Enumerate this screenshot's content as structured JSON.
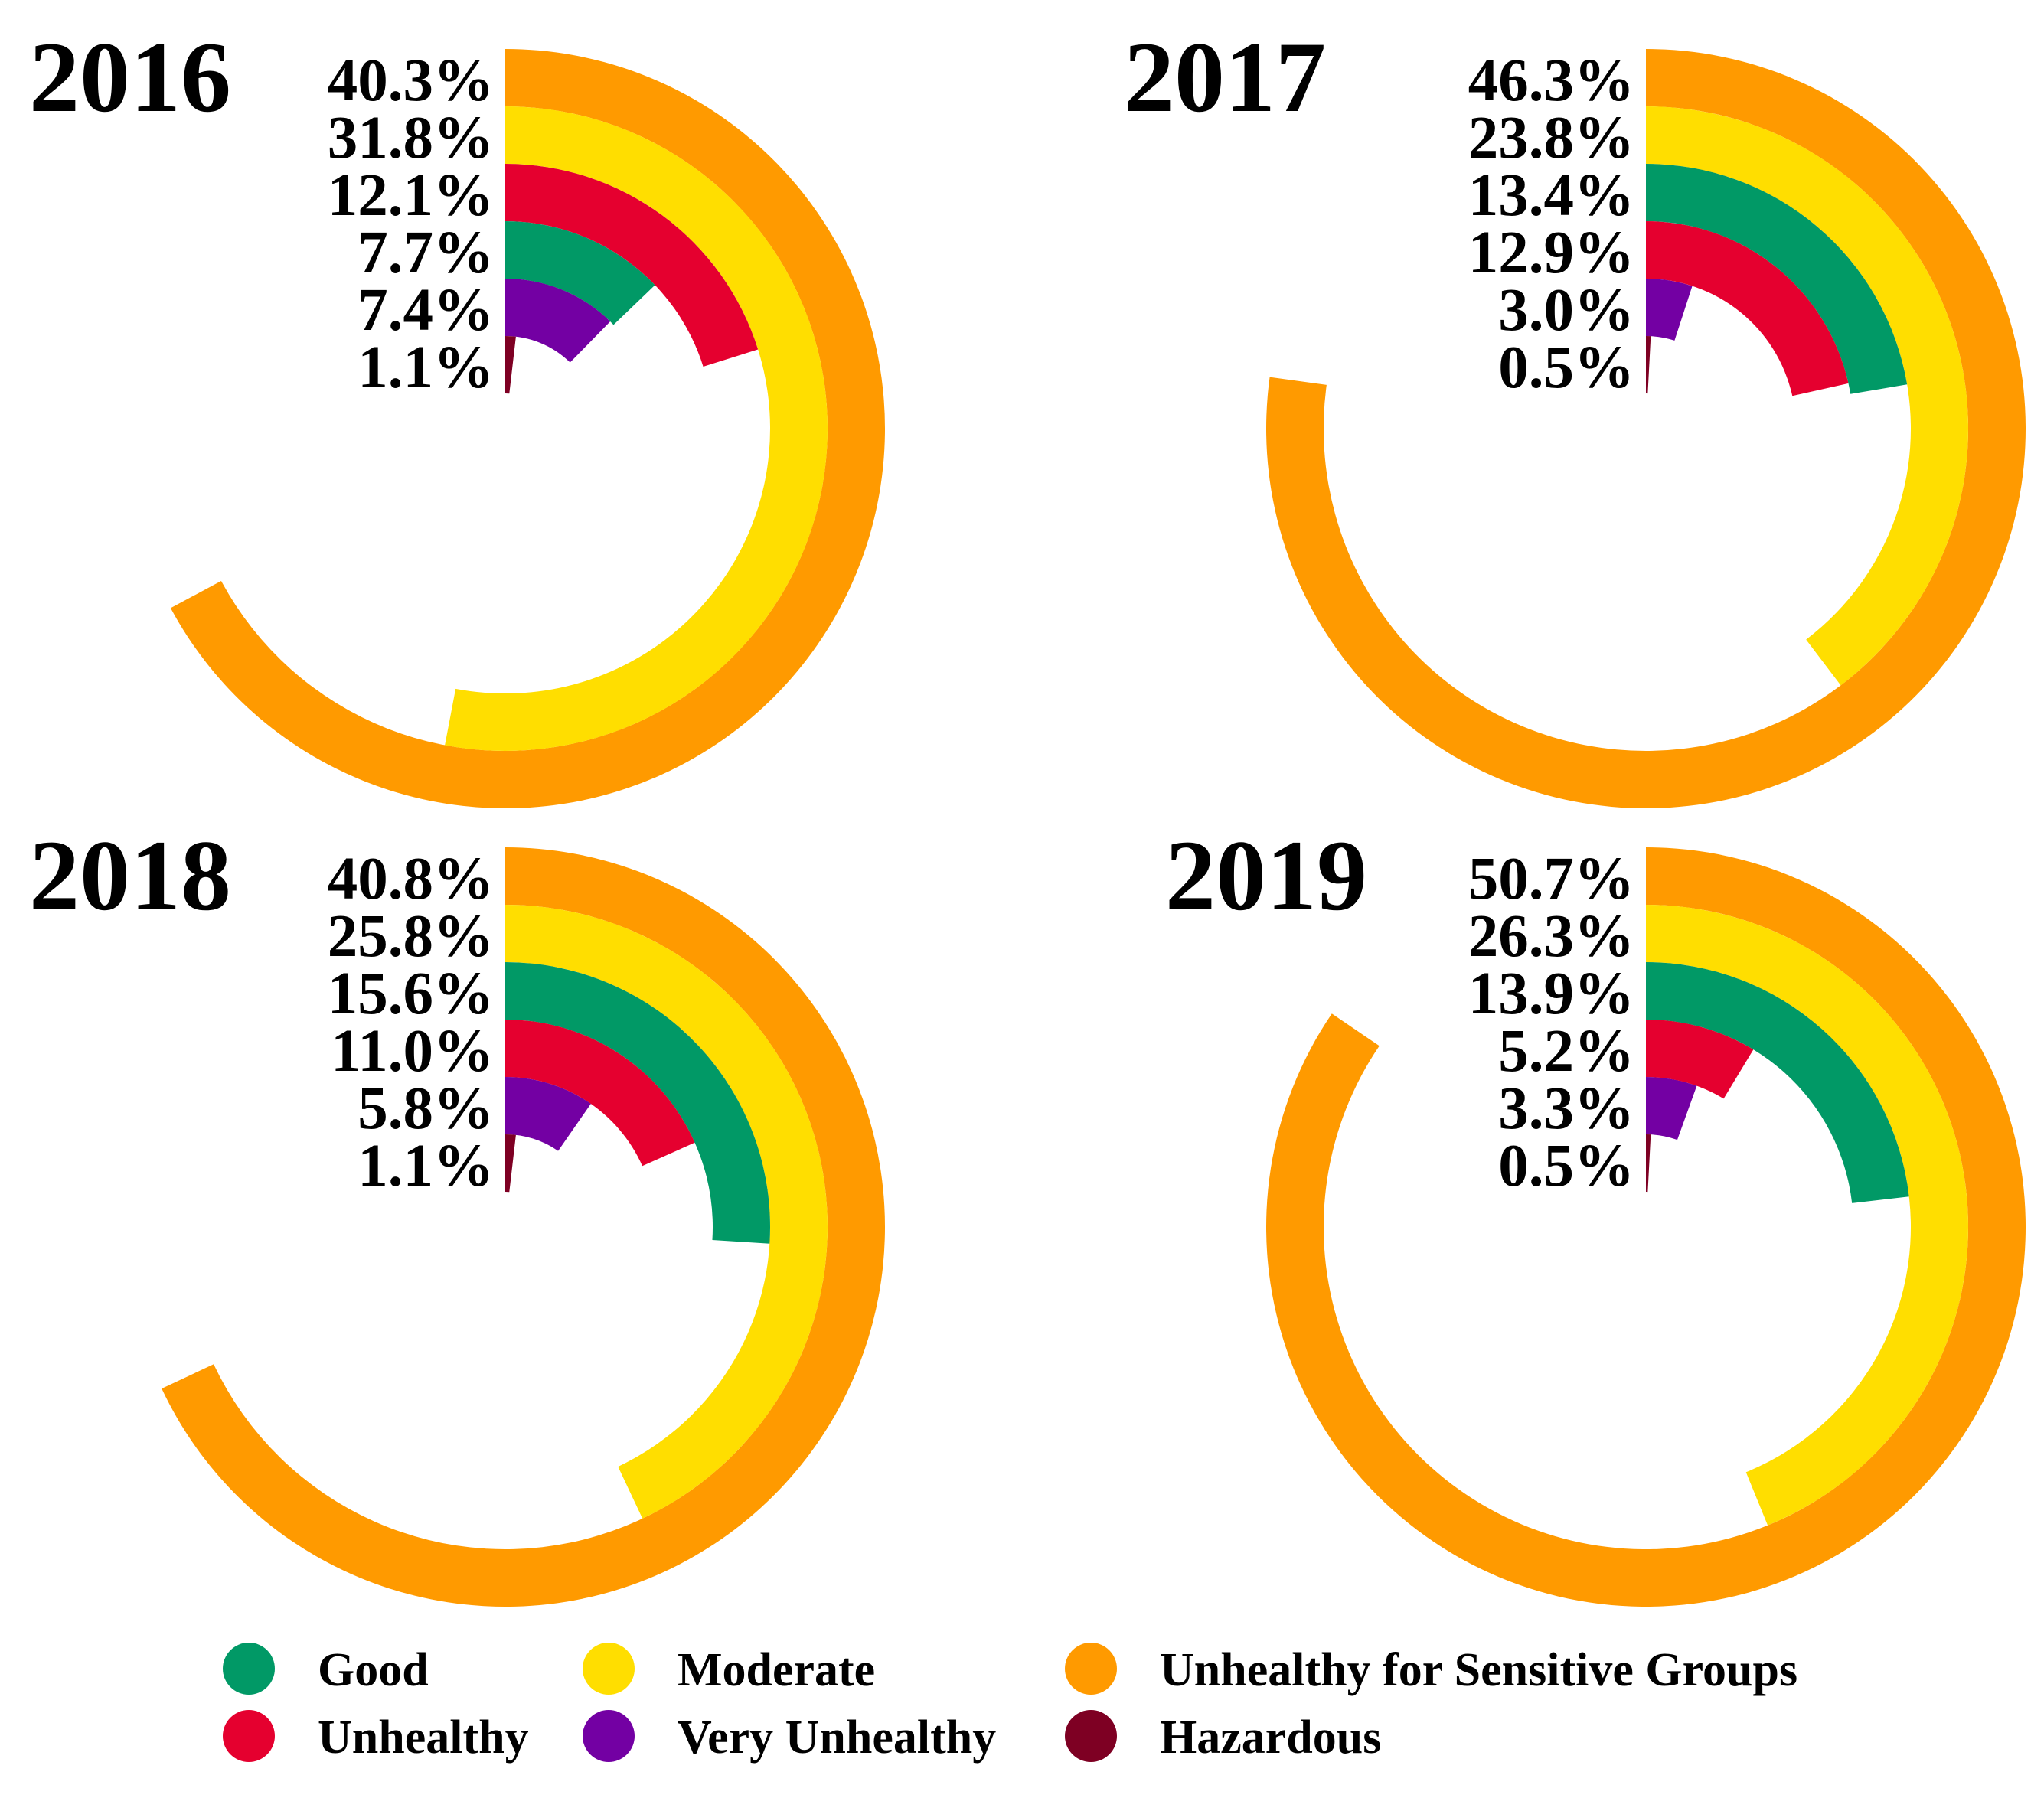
{
  "chart_data": {
    "type": "radial-bar",
    "categories": [
      "Good",
      "Moderate",
      "Unhealthy for Sensitive Groups",
      "Unhealthy",
      "Very Unhealthy",
      "Hazardous"
    ],
    "colors": {
      "Good": "#019966",
      "Moderate": "#FFDE00",
      "Unhealthy for Sensitive Groups": "#FF9A00",
      "Unhealthy": "#E5002F",
      "Very Unhealthy": "#7300A3",
      "Hazardous": "#7E0023"
    },
    "full_circle_percent": 60,
    "panels": [
      {
        "title": "2016",
        "bars": [
          {
            "category": "Unhealthy for Sensitive Groups",
            "value": 40.3,
            "label": "40.3%"
          },
          {
            "category": "Moderate",
            "value": 31.8,
            "label": "31.8%"
          },
          {
            "category": "Unhealthy",
            "value": 12.1,
            "label": "12.1%"
          },
          {
            "category": "Good",
            "value": 7.7,
            "label": "7.7%"
          },
          {
            "category": "Very Unhealthy",
            "value": 7.4,
            "label": "7.4%"
          },
          {
            "category": "Hazardous",
            "value": 1.1,
            "label": "1.1%"
          }
        ]
      },
      {
        "title": "2017",
        "bars": [
          {
            "category": "Unhealthy for Sensitive Groups",
            "value": 46.3,
            "label": "46.3%"
          },
          {
            "category": "Moderate",
            "value": 23.8,
            "label": "23.8%"
          },
          {
            "category": "Good",
            "value": 13.4,
            "label": "13.4%"
          },
          {
            "category": "Unhealthy",
            "value": 12.9,
            "label": "12.9%"
          },
          {
            "category": "Very Unhealthy",
            "value": 3.0,
            "label": "3.0%"
          },
          {
            "category": "Hazardous",
            "value": 0.5,
            "label": "0.5%"
          }
        ]
      },
      {
        "title": "2018",
        "bars": [
          {
            "category": "Unhealthy for Sensitive Groups",
            "value": 40.8,
            "label": "40.8%"
          },
          {
            "category": "Moderate",
            "value": 25.8,
            "label": "25.8%"
          },
          {
            "category": "Good",
            "value": 15.6,
            "label": "15.6%"
          },
          {
            "category": "Unhealthy",
            "value": 11.0,
            "label": "11.0%"
          },
          {
            "category": "Very Unhealthy",
            "value": 5.8,
            "label": "5.8%"
          },
          {
            "category": "Hazardous",
            "value": 1.1,
            "label": "1.1%"
          }
        ]
      },
      {
        "title": "2019",
        "bars": [
          {
            "category": "Unhealthy for Sensitive Groups",
            "value": 50.7,
            "label": "50.7%"
          },
          {
            "category": "Moderate",
            "value": 26.3,
            "label": "26.3%"
          },
          {
            "category": "Good",
            "value": 13.9,
            "label": "13.9%"
          },
          {
            "category": "Unhealthy",
            "value": 5.2,
            "label": "5.2%"
          },
          {
            "category": "Very Unhealthy",
            "value": 3.3,
            "label": "3.3%"
          },
          {
            "category": "Hazardous",
            "value": 0.5,
            "label": "0.5%"
          }
        ]
      }
    ],
    "legend": {
      "placement": "bottom",
      "items": [
        "Good",
        "Moderate",
        "Unhealthy for Sensitive Groups",
        "Unhealthy",
        "Very Unhealthy",
        "Hazardous"
      ]
    }
  }
}
